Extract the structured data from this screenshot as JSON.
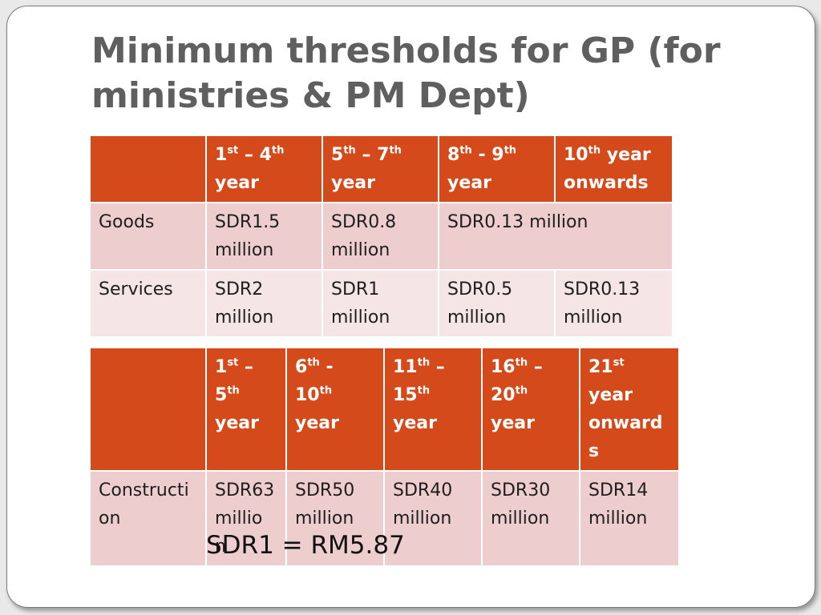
{
  "title": "Minimum thresholds for GP (for ministries & PM Dept)",
  "table1": {
    "headers": [
      {
        "pre": "",
        "a": "1",
        "sa": "st",
        "mid": " – 4",
        "sb": "th",
        "post": " year"
      },
      {
        "pre": "",
        "a": "5",
        "sa": "th",
        "mid": " – 7",
        "sb": "th",
        "post": " year"
      },
      {
        "pre": "",
        "a": "8",
        "sa": "th",
        "mid": "  - 9",
        "sb": "th",
        "post": " year"
      },
      {
        "pre": "",
        "a": "10",
        "sa": "th",
        "mid": " year onwards",
        "sb": "",
        "post": ""
      }
    ],
    "rows": [
      {
        "label": "Goods",
        "cells": [
          "SDR1.5 million",
          "SDR0.8 million",
          "SDR0.13 million"
        ]
      },
      {
        "label": "Services",
        "cells": [
          "SDR2 million",
          "SDR1 million",
          "SDR0.5 million",
          "SDR0.13 million"
        ]
      }
    ]
  },
  "table2": {
    "headers": [
      {
        "a": "1",
        "sa": "st",
        "mid": " – 5",
        "sb": "th",
        "post": " year"
      },
      {
        "a": "6",
        "sa": "th",
        "mid": " - 10",
        "sb": "th",
        "post": " year"
      },
      {
        "a": "11",
        "sa": "th",
        "mid": " – 15",
        "sb": "th",
        "post": " year"
      },
      {
        "a": "16",
        "sa": "th",
        "mid": " – 20",
        "sb": "th",
        "post": " year"
      },
      {
        "a": "21",
        "sa": "st",
        "mid": " year onward s",
        "sb": "",
        "post": ""
      }
    ],
    "rows": [
      {
        "label": "Constructi on",
        "cells": [
          "SDR63 millio n",
          "SDR50 million",
          "SDR40 million",
          "SDR30 million",
          "SDR14 million"
        ]
      }
    ]
  },
  "note": "SDR1 = RM5.87"
}
